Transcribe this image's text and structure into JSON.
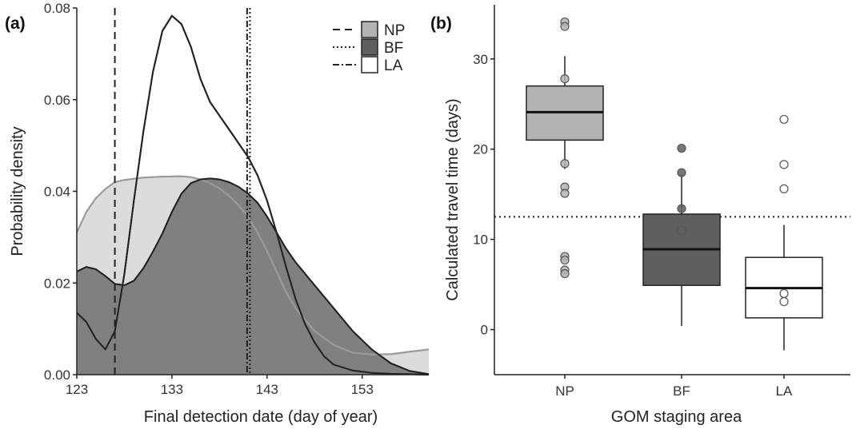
{
  "colors": {
    "NP": "#b3b3b3",
    "BF": "#5f5f5f",
    "LA": "#ffffff",
    "np_light": "#dcdcdc",
    "stroke": "#222222"
  },
  "chart_data": [
    {
      "panel": "(a)",
      "type": "area",
      "xlabel": "Final detection date (day of year)",
      "ylabel": "Probability density",
      "xlim": [
        123,
        160
      ],
      "ylim": [
        0,
        0.08
      ],
      "xticks": [
        "123",
        "133",
        "143",
        "153"
      ],
      "xtick_values": [
        123,
        133,
        143,
        153
      ],
      "yticks": [
        "0.00",
        "0.02",
        "0.04",
        "0.06",
        "0.08"
      ],
      "ytick_values": [
        0,
        0.02,
        0.04,
        0.06,
        0.08
      ],
      "grid": false,
      "legend_placement": "top-right",
      "legend": [
        {
          "label": "NP",
          "line": "dashed",
          "fill": "#b3b3b3"
        },
        {
          "label": "BF",
          "line": "dotted",
          "fill": "#5f5f5f"
        },
        {
          "label": "LA",
          "line": "dashdot",
          "fill": "#ffffff"
        }
      ],
      "vlines": [
        {
          "group": "NP",
          "x": 127,
          "style": "dashed"
        },
        {
          "group": "BF",
          "x": 141.2,
          "style": "dotted"
        },
        {
          "group": "LA",
          "x": 140.9,
          "style": "dashdot"
        }
      ],
      "series": [
        {
          "name": "NP",
          "fill": "#b3b3b3",
          "x": [
            123,
            124,
            125,
            126,
            127,
            128,
            130,
            132,
            134,
            135,
            136,
            137,
            138,
            139,
            140,
            141,
            142,
            143,
            144,
            145,
            146,
            148,
            150,
            152,
            154,
            156,
            158,
            160
          ],
          "y": [
            0.031,
            0.0355,
            0.0385,
            0.0405,
            0.042,
            0.0425,
            0.043,
            0.0432,
            0.0433,
            0.0431,
            0.0426,
            0.0418,
            0.0406,
            0.039,
            0.037,
            0.0345,
            0.031,
            0.027,
            0.0225,
            0.018,
            0.0145,
            0.0095,
            0.0065,
            0.0048,
            0.0044,
            0.0045,
            0.005,
            0.0055
          ]
        },
        {
          "name": "BF",
          "fill": "#5f5f5f",
          "x": [
            123,
            124,
            125,
            126,
            127,
            128,
            129,
            130,
            131,
            132,
            133,
            134,
            135,
            136,
            137,
            138,
            139,
            140,
            141,
            142,
            143,
            144,
            145,
            146,
            148,
            150,
            152,
            154,
            156,
            158,
            160
          ],
          "y": [
            0.0225,
            0.0235,
            0.023,
            0.0215,
            0.0198,
            0.0195,
            0.0205,
            0.0232,
            0.0268,
            0.0308,
            0.0355,
            0.0395,
            0.0418,
            0.0426,
            0.0428,
            0.0426,
            0.042,
            0.041,
            0.0395,
            0.0375,
            0.0345,
            0.031,
            0.0275,
            0.0245,
            0.0195,
            0.0145,
            0.0095,
            0.0055,
            0.0025,
            0.0008,
            0.0001
          ]
        },
        {
          "name": "LA",
          "fill": "#ffffff",
          "x": [
            123,
            124,
            125,
            126,
            127,
            128,
            129,
            130,
            131,
            132,
            133,
            134,
            135,
            136,
            137,
            138,
            139,
            140,
            141,
            142,
            143,
            144,
            145,
            146,
            147,
            148,
            149,
            150,
            152,
            154,
            156,
            158,
            160
          ],
          "y": [
            0.0135,
            0.0115,
            0.0078,
            0.0055,
            0.0095,
            0.022,
            0.038,
            0.053,
            0.066,
            0.075,
            0.0783,
            0.0765,
            0.0715,
            0.0645,
            0.0595,
            0.0565,
            0.0535,
            0.0505,
            0.0475,
            0.0435,
            0.038,
            0.031,
            0.0235,
            0.0165,
            0.011,
            0.007,
            0.004,
            0.0022,
            0.0009,
            0.0004,
            0.0002,
            0.0001,
            0
          ]
        }
      ]
    },
    {
      "panel": "(b)",
      "type": "box",
      "xlabel": "GOM staging area",
      "ylabel": "Calculated travel time (days)",
      "ylim": [
        -5,
        36
      ],
      "categories": [
        "NP",
        "BF",
        "LA"
      ],
      "yticks": [
        "0",
        "10",
        "20",
        "30"
      ],
      "ytick_values": [
        0,
        10,
        20,
        30
      ],
      "grid": false,
      "hline": {
        "y": 12.5,
        "style": "dotted"
      },
      "boxes": [
        {
          "name": "NP",
          "fill": "#b3b3b3",
          "q1": 21,
          "median": 24.1,
          "q3": 27,
          "whisker_low": 17.8,
          "whisker_high": 30.3,
          "points": [
            34.1,
            33.6,
            27.8,
            18.4,
            15.8,
            15.1,
            8.1,
            7.7,
            6.6,
            6.2
          ]
        },
        {
          "name": "BF",
          "fill": "#5f5f5f",
          "q1": 4.9,
          "median": 8.9,
          "q3": 12.8,
          "whisker_low": 0.4,
          "whisker_high": 17.2,
          "points": [
            20.1,
            17.4,
            13.4,
            11.0
          ]
        },
        {
          "name": "LA",
          "fill": "#ffffff",
          "q1": 1.3,
          "median": 4.6,
          "q3": 8.0,
          "whisker_low": -2.3,
          "whisker_high": 11.6,
          "points": [
            23.3,
            18.3,
            15.6,
            4.0,
            3.1
          ]
        }
      ]
    }
  ]
}
